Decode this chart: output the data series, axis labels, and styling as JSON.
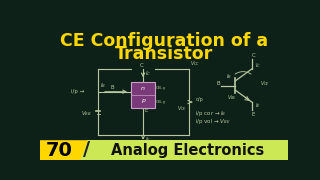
{
  "bg_color": "#0d2118",
  "title_line1": "CE Configuration of a",
  "title_line2": "Transistor",
  "title_color": "#FFD700",
  "title_fontsize": 12.5,
  "bottom_bar_color": "#cce855",
  "bottom_num": "70",
  "bottom_text": "Analog Electronics",
  "bottom_text_color": "#111111",
  "circuit_color": "#b8c8a0",
  "transistor_box_color": "#7a3a7a",
  "transistor_box_edge": "#c8a0c8"
}
